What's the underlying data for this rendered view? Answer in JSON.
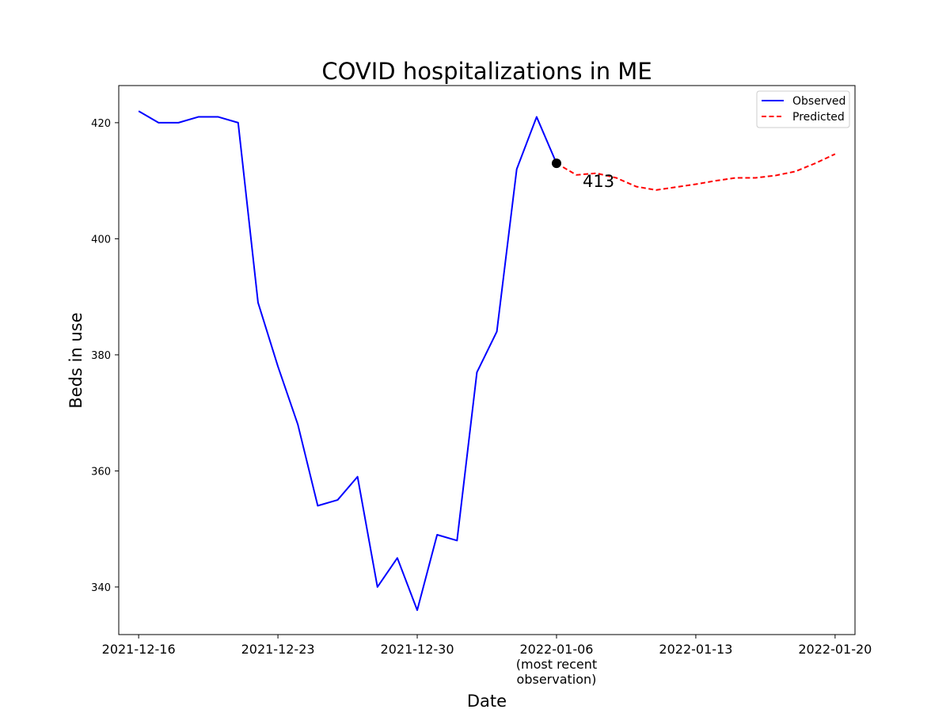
{
  "chart_data": {
    "type": "line",
    "title": "COVID hospitalizations in ME",
    "xlabel": "Date",
    "ylabel": "Beds in use",
    "xlim": [
      "2021-12-15",
      "2022-01-21"
    ],
    "ylim": [
      331.8,
      426.4
    ],
    "grid": false,
    "legend_position": "top-right",
    "x_ticks": [
      {
        "date": "2021-12-16",
        "label": [
          "2021-12-16"
        ]
      },
      {
        "date": "2021-12-23",
        "label": [
          "2021-12-23"
        ]
      },
      {
        "date": "2021-12-30",
        "label": [
          "2021-12-30"
        ]
      },
      {
        "date": "2022-01-06",
        "label": [
          "2022-01-06",
          "(most recent",
          "observation)"
        ]
      },
      {
        "date": "2022-01-13",
        "label": [
          "2022-01-13"
        ]
      },
      {
        "date": "2022-01-20",
        "label": [
          "2022-01-20"
        ]
      }
    ],
    "y_ticks": [
      340,
      360,
      380,
      400,
      420
    ],
    "series": [
      {
        "name": "Observed",
        "color": "#0000ff",
        "style": "solid",
        "points": [
          [
            "2021-12-16",
            422
          ],
          [
            "2021-12-17",
            420
          ],
          [
            "2021-12-18",
            420
          ],
          [
            "2021-12-19",
            421
          ],
          [
            "2021-12-20",
            421
          ],
          [
            "2021-12-21",
            420
          ],
          [
            "2021-12-22",
            389
          ],
          [
            "2021-12-23",
            378
          ],
          [
            "2021-12-24",
            368
          ],
          [
            "2021-12-25",
            354
          ],
          [
            "2021-12-26",
            355
          ],
          [
            "2021-12-27",
            359
          ],
          [
            "2021-12-28",
            340
          ],
          [
            "2021-12-29",
            345
          ],
          [
            "2021-12-30",
            336
          ],
          [
            "2021-12-31",
            349
          ],
          [
            "2022-01-01",
            348
          ],
          [
            "2022-01-02",
            377
          ],
          [
            "2022-01-03",
            384
          ],
          [
            "2022-01-04",
            412
          ],
          [
            "2022-01-05",
            421
          ],
          [
            "2022-01-06",
            413
          ]
        ]
      },
      {
        "name": "Predicted",
        "color": "#ff0000",
        "style": "dashed",
        "points": [
          [
            "2022-01-06",
            413
          ],
          [
            "2022-01-07",
            411
          ],
          [
            "2022-01-08",
            411.3
          ],
          [
            "2022-01-09",
            410.5
          ],
          [
            "2022-01-10",
            409
          ],
          [
            "2022-01-11",
            408.4
          ],
          [
            "2022-01-12",
            408.9
          ],
          [
            "2022-01-13",
            409.4
          ],
          [
            "2022-01-14",
            410
          ],
          [
            "2022-01-15",
            410.5
          ],
          [
            "2022-01-16",
            410.5
          ],
          [
            "2022-01-17",
            410.9
          ],
          [
            "2022-01-18",
            411.6
          ],
          [
            "2022-01-19",
            413
          ],
          [
            "2022-01-20",
            414.6
          ]
        ]
      }
    ],
    "annotation": {
      "date": "2022-01-06",
      "value": 413,
      "text": "413"
    }
  }
}
